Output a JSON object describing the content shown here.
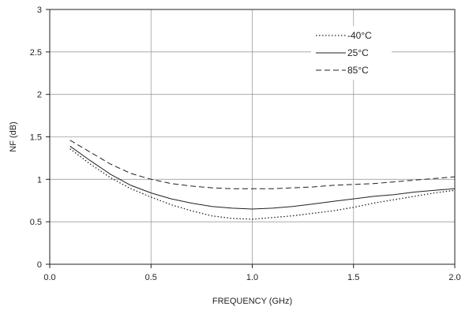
{
  "chart_data": {
    "type": "line",
    "xlabel": "FREQUENCY (GHz)",
    "ylabel": "NF (dB)",
    "xlim": [
      0.0,
      2.0
    ],
    "ylim": [
      0,
      3
    ],
    "xticks": [
      "0.0",
      "0.5",
      "1.0",
      "1.5",
      "2.0"
    ],
    "yticks": [
      "0",
      "0.5",
      "1",
      "1.5",
      "2",
      "2.5",
      "3"
    ],
    "grid": true,
    "legend_position": "top-right",
    "series": [
      {
        "name": "-40°C",
        "style": "dotted",
        "x": [
          0.1,
          0.2,
          0.3,
          0.4,
          0.5,
          0.6,
          0.7,
          0.8,
          0.9,
          1.0,
          1.1,
          1.2,
          1.3,
          1.4,
          1.5,
          1.6,
          1.7,
          1.8,
          1.9,
          2.0
        ],
        "y": [
          1.36,
          1.18,
          1.02,
          0.89,
          0.79,
          0.7,
          0.63,
          0.57,
          0.54,
          0.53,
          0.55,
          0.57,
          0.6,
          0.63,
          0.67,
          0.72,
          0.76,
          0.8,
          0.84,
          0.87
        ]
      },
      {
        "name": "25°C",
        "style": "solid",
        "x": [
          0.1,
          0.2,
          0.3,
          0.4,
          0.5,
          0.6,
          0.7,
          0.8,
          0.9,
          1.0,
          1.1,
          1.2,
          1.3,
          1.4,
          1.5,
          1.6,
          1.7,
          1.8,
          1.9,
          2.0
        ],
        "y": [
          1.39,
          1.22,
          1.06,
          0.93,
          0.84,
          0.77,
          0.72,
          0.68,
          0.66,
          0.65,
          0.66,
          0.68,
          0.71,
          0.74,
          0.77,
          0.8,
          0.82,
          0.85,
          0.87,
          0.89
        ]
      },
      {
        "name": "85°C",
        "style": "dashed",
        "x": [
          0.1,
          0.2,
          0.3,
          0.4,
          0.5,
          0.6,
          0.7,
          0.8,
          0.9,
          1.0,
          1.1,
          1.2,
          1.3,
          1.4,
          1.5,
          1.6,
          1.7,
          1.8,
          1.9,
          2.0
        ],
        "y": [
          1.46,
          1.32,
          1.18,
          1.07,
          1.0,
          0.95,
          0.92,
          0.9,
          0.89,
          0.89,
          0.89,
          0.9,
          0.91,
          0.93,
          0.94,
          0.95,
          0.97,
          0.99,
          1.01,
          1.03
        ]
      }
    ]
  }
}
